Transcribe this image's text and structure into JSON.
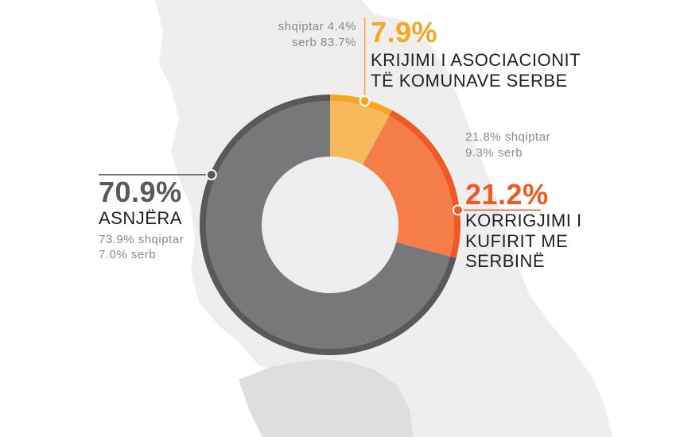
{
  "chart_data": {
    "type": "pie",
    "style": "donut",
    "title": "",
    "slices": [
      {
        "percent": 70.9,
        "percent_label": "70.9%",
        "label_lines": [
          "ASNJËRA"
        ],
        "breakdown": [
          "73.9% shqiptar",
          "7.0% serb"
        ],
        "color": "#77787a",
        "ring_color": "#58595b"
      },
      {
        "percent": 7.9,
        "percent_label": "7.9%",
        "label_lines": [
          "KRIJIMI I ASOCIACIONIT",
          "TË KOMUNAVE SERBE"
        ],
        "breakdown": [
          "shqiptar 4.4%",
          "serb 83.7%"
        ],
        "color": "#f8b95c",
        "ring_color": "#f5a623"
      },
      {
        "percent": 21.2,
        "percent_label": "21.2%",
        "label_lines": [
          "KORRIGJIMI I",
          "KUFIRIT ME",
          "SERBINË"
        ],
        "breakdown": [
          "21.8% shqiptar",
          "9.3% serb"
        ],
        "color": "#f47d4a",
        "ring_color": "#ef5a24"
      }
    ],
    "legend": "none",
    "background": "map silhouette"
  }
}
